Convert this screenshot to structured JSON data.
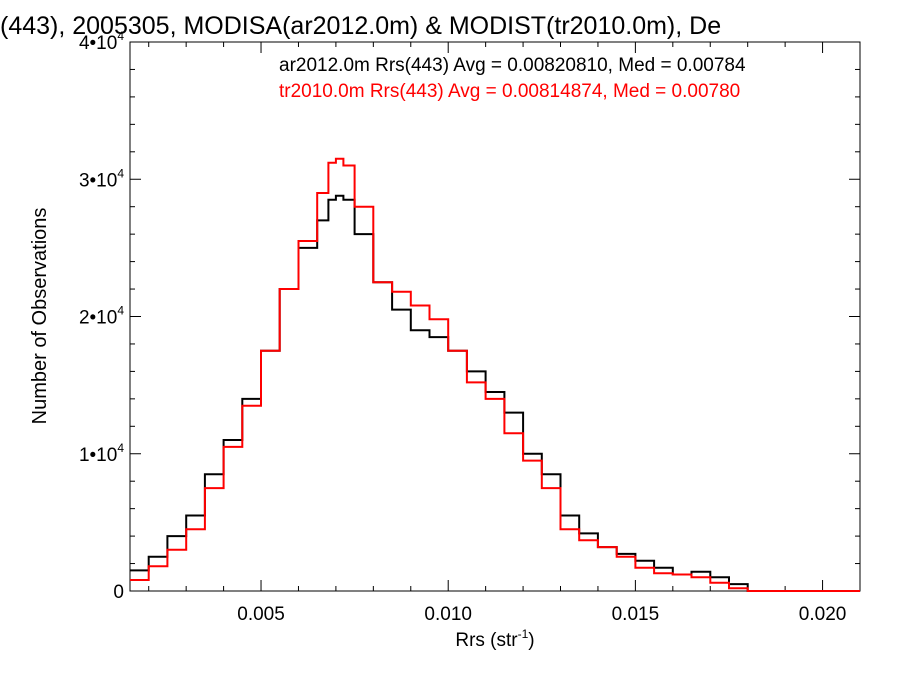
{
  "chart_data": {
    "type": "line",
    "title": "(443), 2005305, MODISA(ar2012.0m) & MODIST(tr2010.0m), De",
    "xlabel": "Rrs (str",
    "xlabel_sup": "-1",
    "xlabel_end": ")",
    "ylabel": "Number of Observations",
    "xlim": [
      0.0015,
      0.021
    ],
    "ylim": [
      0,
      40000
    ],
    "xticks": [
      {
        "value": 0.005,
        "label": "0.005"
      },
      {
        "value": 0.01,
        "label": "0.010"
      },
      {
        "value": 0.015,
        "label": "0.015"
      },
      {
        "value": 0.02,
        "label": "0.020"
      }
    ],
    "yticks": [
      {
        "value": 0,
        "base": "0",
        "exp": ""
      },
      {
        "value": 10000,
        "base": "1•10",
        "exp": "4"
      },
      {
        "value": 20000,
        "base": "2•10",
        "exp": "4"
      },
      {
        "value": 30000,
        "base": "3•10",
        "exp": "4"
      },
      {
        "value": 40000,
        "base": "4•10",
        "exp": "4"
      }
    ],
    "grid": false,
    "legend_position": "top-right",
    "series": [
      {
        "name": "ar2012.0m Rrs(443) Avg = 0.00820810, Med = 0.00784",
        "color": "#000000",
        "x": [
          0.0015,
          0.002,
          0.0025,
          0.003,
          0.0035,
          0.004,
          0.0045,
          0.005,
          0.0055,
          0.006,
          0.0065,
          0.0068,
          0.007,
          0.0072,
          0.0075,
          0.008,
          0.0085,
          0.009,
          0.0095,
          0.01,
          0.0105,
          0.011,
          0.0115,
          0.012,
          0.0125,
          0.013,
          0.0135,
          0.014,
          0.0145,
          0.015,
          0.0155,
          0.016,
          0.0165,
          0.017,
          0.0175,
          0.018,
          0.0185,
          0.019,
          0.02,
          0.021
        ],
        "y": [
          1500,
          2500,
          4000,
          5500,
          8500,
          11000,
          14000,
          17500,
          22000,
          25000,
          27000,
          28500,
          28800,
          28500,
          26000,
          22500,
          20500,
          19000,
          18500,
          17500,
          16000,
          14500,
          13000,
          10000,
          8500,
          5500,
          4200,
          3200,
          2700,
          2200,
          1700,
          1200,
          1400,
          1000,
          500,
          0,
          0,
          0,
          0,
          0
        ]
      },
      {
        "name": "tr2010.0m Rrs(443) Avg = 0.00814874, Med = 0.00780",
        "color": "#ff0000",
        "x": [
          0.0015,
          0.002,
          0.0025,
          0.003,
          0.0035,
          0.004,
          0.0045,
          0.005,
          0.0055,
          0.006,
          0.0065,
          0.0068,
          0.007,
          0.0072,
          0.0075,
          0.008,
          0.0085,
          0.009,
          0.0095,
          0.01,
          0.0105,
          0.011,
          0.0115,
          0.012,
          0.0125,
          0.013,
          0.0135,
          0.014,
          0.0145,
          0.015,
          0.0155,
          0.016,
          0.0165,
          0.017,
          0.0175,
          0.018,
          0.0185,
          0.019,
          0.02,
          0.021
        ],
        "y": [
          800,
          1800,
          3000,
          4500,
          7500,
          10500,
          13500,
          17500,
          22000,
          25500,
          29000,
          31200,
          31500,
          31000,
          28000,
          22500,
          21800,
          20800,
          19800,
          17500,
          15200,
          14000,
          11500,
          9500,
          7500,
          4500,
          3700,
          3200,
          2500,
          1700,
          1300,
          1200,
          1000,
          600,
          200,
          0,
          0,
          0,
          0,
          0
        ]
      }
    ]
  }
}
